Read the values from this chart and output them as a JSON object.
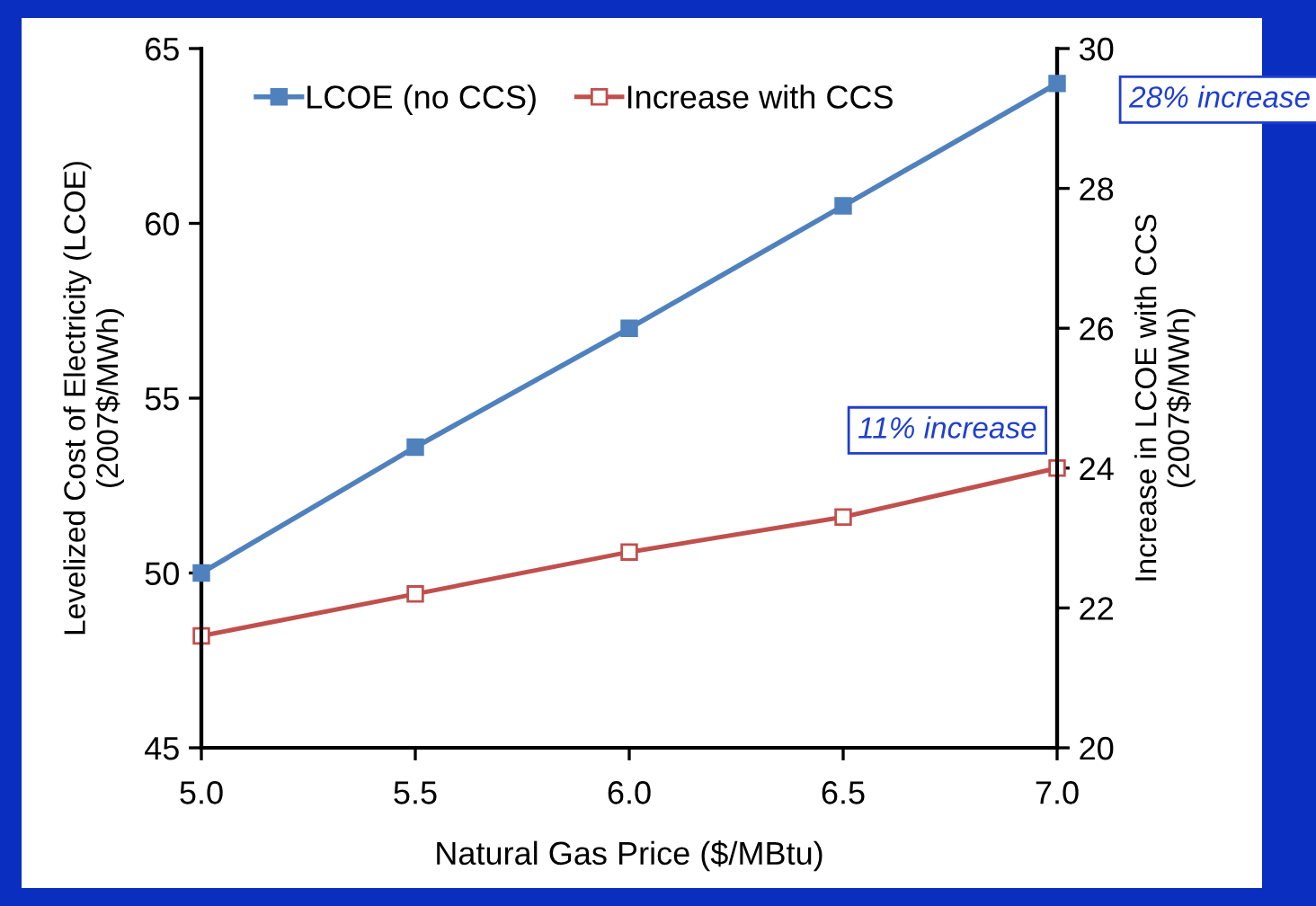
{
  "chart_data": {
    "type": "line",
    "xlabel": "Natural Gas Price ($/MBtu)",
    "ylabel": "Levelized Cost of Electricity (LCOE)\n(2007$/MWh)",
    "y2label": "Increase in LCOE with CCS\n(2007$/MWh)",
    "x": [
      5.0,
      5.5,
      6.0,
      6.5,
      7.0
    ],
    "series": [
      {
        "name": "LCOE (no CCS)",
        "color": "#4f81bd",
        "values": [
          50.0,
          53.6,
          57.0,
          60.5,
          64.0
        ]
      },
      {
        "name": "Increase with CCS",
        "color": "#c0504d",
        "axis": "y2",
        "values": [
          21.6,
          22.2,
          22.8,
          23.3,
          24.0
        ]
      }
    ],
    "xlim": [
      5.0,
      7.0
    ],
    "xticks": [
      {
        "value": 5.0,
        "label": "5.0"
      },
      {
        "value": 5.5,
        "label": "5.5"
      },
      {
        "value": 6.0,
        "label": "6.0"
      },
      {
        "value": 6.5,
        "label": "6.5"
      },
      {
        "value": 7.0,
        "label": "7.0"
      }
    ],
    "ylim": [
      45,
      65
    ],
    "yticks": [
      45,
      50,
      55,
      60,
      65
    ],
    "y2lim": [
      20,
      30
    ],
    "y2ticks": [
      20,
      22,
      24,
      26,
      28,
      30
    ],
    "annotations": [
      "28% increase",
      "11% increase"
    ],
    "marker": "square",
    "line_style": "solid",
    "legend": "top left",
    "grid": false
  }
}
